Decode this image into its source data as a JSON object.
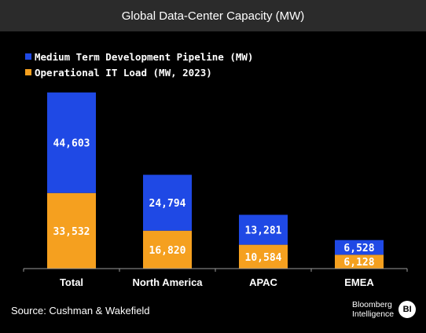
{
  "header": {
    "title": "Global Data-Center Capacity (MW)"
  },
  "colors": {
    "pipeline": "#1f49e5",
    "operational": "#f5a01f",
    "background": "#000000",
    "header_bg": "#2b2b2b"
  },
  "chart_data": {
    "type": "bar",
    "stacked": true,
    "title": "Global Data-Center Capacity (MW)",
    "categories": [
      "Total",
      "North America",
      "APAC",
      "EMEA"
    ],
    "series": [
      {
        "name": "Operational IT Load (MW, 2023)",
        "values": [
          33532,
          16820,
          10584,
          6128
        ],
        "labels": [
          "33,532",
          "16,820",
          "10,584",
          "6,128"
        ]
      },
      {
        "name": "Medium Term Development Pipeline (MW)",
        "values": [
          44603,
          24794,
          13281,
          6528
        ],
        "labels": [
          "44,603",
          "24,794",
          "13,281",
          "6,528"
        ]
      }
    ],
    "ylim": [
      0,
      85000
    ],
    "grid": false,
    "legend": "top-left"
  },
  "legend": {
    "items": [
      {
        "label": "Medium Term Development Pipeline (MW)",
        "color": "#1f49e5"
      },
      {
        "label": "Operational IT Load (MW, 2023)",
        "color": "#f5a01f"
      }
    ]
  },
  "footer": {
    "source": "Source: Cushman & Wakefield",
    "brand_line1": "Bloomberg",
    "brand_line2": "Intelligence",
    "brand_badge": "BI"
  }
}
